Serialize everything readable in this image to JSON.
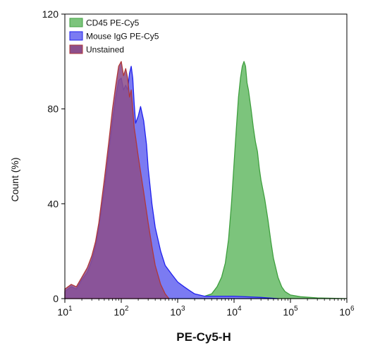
{
  "chart_data": {
    "type": "area",
    "title": "",
    "xlabel": "PE-Cy5-H",
    "ylabel": "Count (%)",
    "xscale": "log",
    "xlim": [
      10,
      1000000
    ],
    "ylim": [
      0,
      120
    ],
    "x_tick_values": [
      10,
      100,
      1000,
      10000,
      100000,
      1000000
    ],
    "x_ticks": [
      {
        "base": "10",
        "exp": "1"
      },
      {
        "base": "10",
        "exp": "2"
      },
      {
        "base": "10",
        "exp": "3"
      },
      {
        "base": "10",
        "exp": "4"
      },
      {
        "base": "10",
        "exp": "5"
      },
      {
        "base": "10",
        "exp": "6"
      }
    ],
    "y_ticks": [
      0,
      40,
      80,
      120
    ],
    "grid": false,
    "legend_position": "top-left",
    "series": [
      {
        "name": "CD45 PE-Cy5",
        "color": "#3f9f3f",
        "fill": "#7cc47c",
        "x": [
          1000,
          2000,
          3000,
          4000,
          5000,
          6000,
          7000,
          8000,
          9000,
          10000,
          11000,
          12000,
          13000,
          14000,
          15000,
          16000,
          17000,
          18000,
          20000,
          22000,
          24000,
          26000,
          28000,
          30000,
          35000,
          40000,
          45000,
          50000,
          60000,
          70000,
          80000,
          100000,
          150000,
          300000,
          1000000
        ],
        "y": [
          0,
          0.5,
          1,
          2,
          5,
          9,
          15,
          25,
          40,
          57,
          72,
          85,
          93,
          98,
          100,
          98,
          91,
          88,
          80,
          72,
          66,
          62,
          55,
          50,
          42,
          33,
          24,
          17,
          9,
          5,
          3,
          1.5,
          0.8,
          0.3,
          0
        ]
      },
      {
        "name": "Mouse IgG PE-Cy5",
        "color": "#2020ee",
        "fill": "#7b7bf2",
        "x": [
          10,
          13,
          16,
          20,
          25,
          30,
          35,
          40,
          50,
          60,
          70,
          80,
          90,
          100,
          110,
          120,
          130,
          140,
          150,
          160,
          170,
          180,
          200,
          220,
          250,
          280,
          300,
          350,
          400,
          500,
          600,
          800,
          1000,
          1300,
          1600,
          2000,
          3000,
          5000,
          10000,
          30000,
          60000
        ],
        "y": [
          3,
          5,
          4,
          8,
          11,
          16,
          22,
          30,
          46,
          62,
          75,
          85,
          92,
          93,
          88,
          90,
          88,
          95,
          98,
          93,
          82,
          74,
          77,
          81,
          75,
          65,
          55,
          40,
          30,
          20,
          14,
          10,
          7,
          5,
          3.5,
          2,
          1,
          1,
          1,
          0.5,
          0
        ]
      },
      {
        "name": "Unstained",
        "color": "#b03838",
        "fill": "#8c4f8c",
        "x": [
          10,
          13,
          16,
          20,
          25,
          30,
          35,
          40,
          50,
          60,
          70,
          80,
          90,
          100,
          110,
          120,
          130,
          140,
          150,
          160,
          170,
          180,
          200,
          250,
          300,
          350,
          400,
          500,
          600,
          700
        ],
        "y": [
          4,
          6,
          5,
          9,
          13,
          18,
          24,
          32,
          50,
          66,
          80,
          90,
          98,
          100,
          94,
          97,
          93,
          85,
          88,
          80,
          72,
          68,
          60,
          45,
          32,
          22,
          14,
          6,
          2,
          0
        ]
      }
    ]
  }
}
